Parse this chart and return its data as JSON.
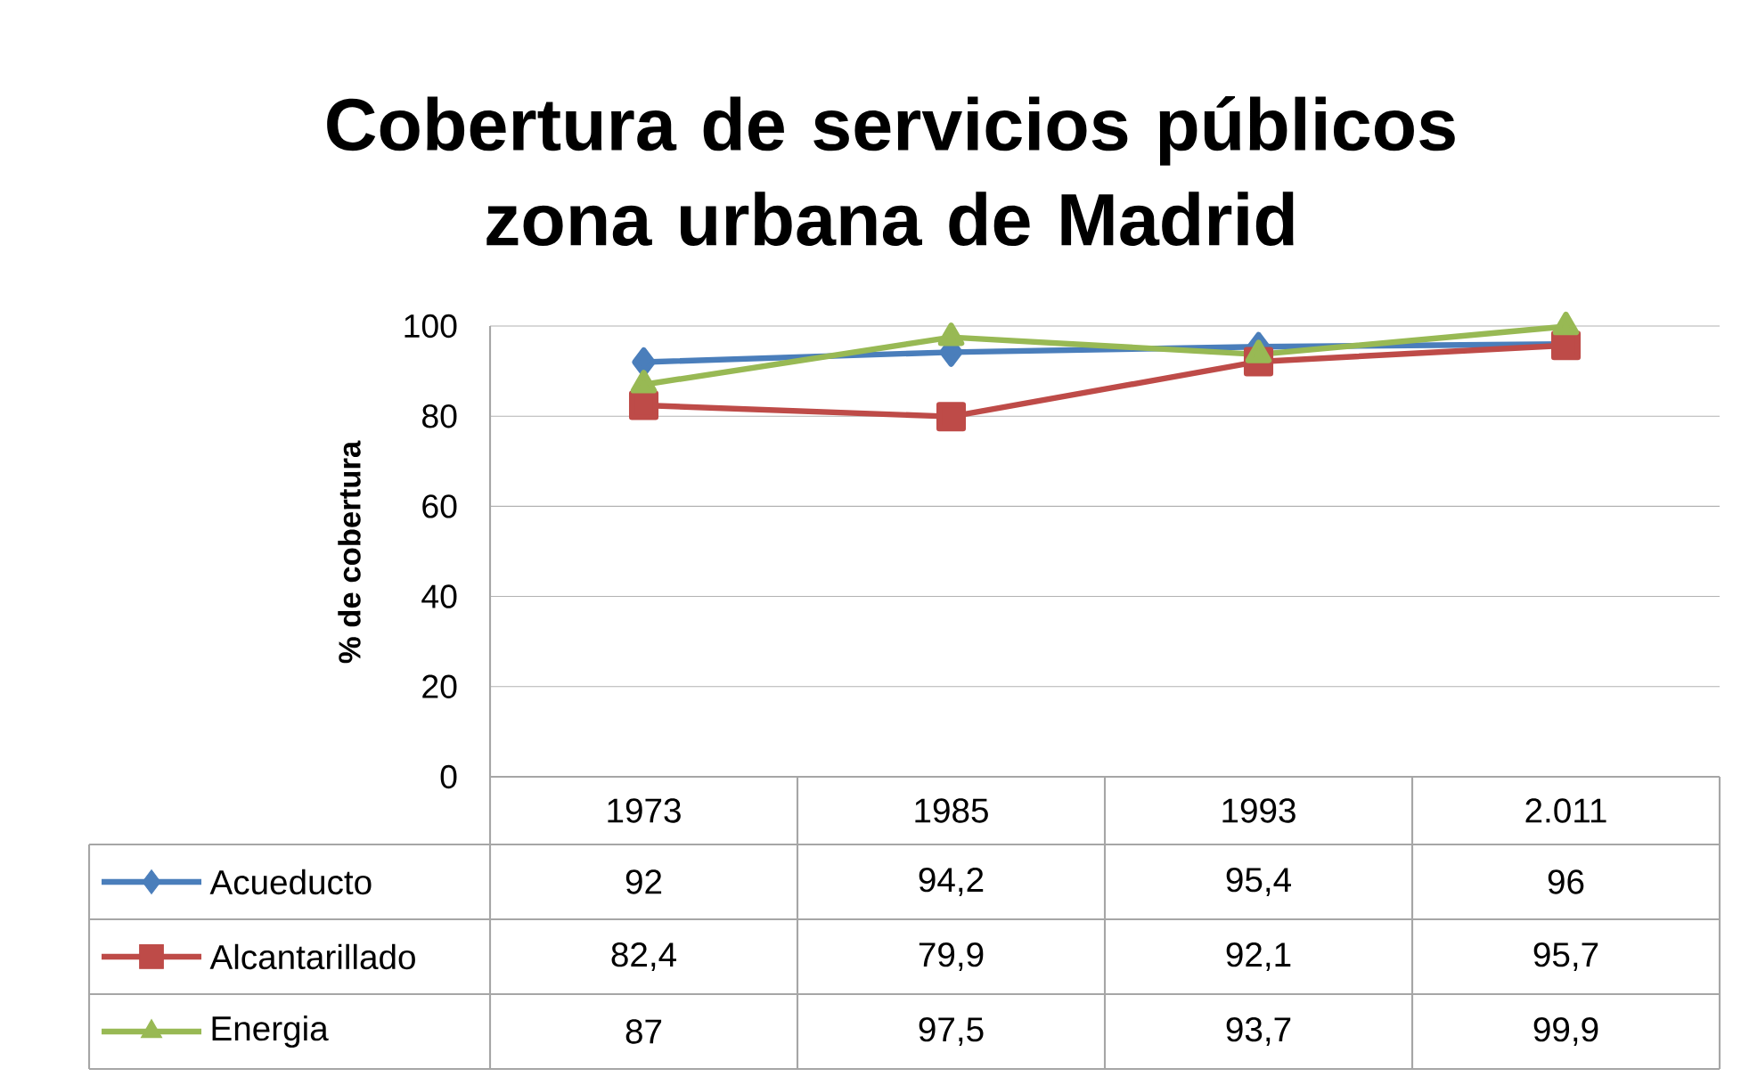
{
  "chart_data": {
    "type": "line",
    "title": "Cobertura de servicios públicos zona urbana de Madrid",
    "ylabel": "% de cobertura",
    "categories": [
      "1973",
      "1985",
      "1993",
      "2.011"
    ],
    "ylim": [
      0,
      100
    ],
    "yticks": [
      0,
      20,
      40,
      60,
      80,
      100
    ],
    "grid": "y",
    "legend": "bottom left",
    "series": [
      {
        "name": "Acueducto",
        "color": "#4a7ebb",
        "marker": "diamond",
        "values": [
          92,
          94.2,
          95.4,
          96
        ],
        "value_labels": [
          "92",
          "94,2",
          "95,4",
          "96"
        ]
      },
      {
        "name": "Alcantarillado",
        "color": "#be4b48",
        "marker": "square",
        "values": [
          82.4,
          79.9,
          92.1,
          95.7
        ],
        "value_labels": [
          "82,4",
          "79,9",
          "92,1",
          "95,7"
        ]
      },
      {
        "name": "Energia",
        "color": "#98b954",
        "marker": "triangle",
        "values": [
          87,
          97.5,
          93.7,
          99.9
        ],
        "value_labels": [
          "87",
          "97,5",
          "93,7",
          "99,9"
        ]
      }
    ]
  }
}
